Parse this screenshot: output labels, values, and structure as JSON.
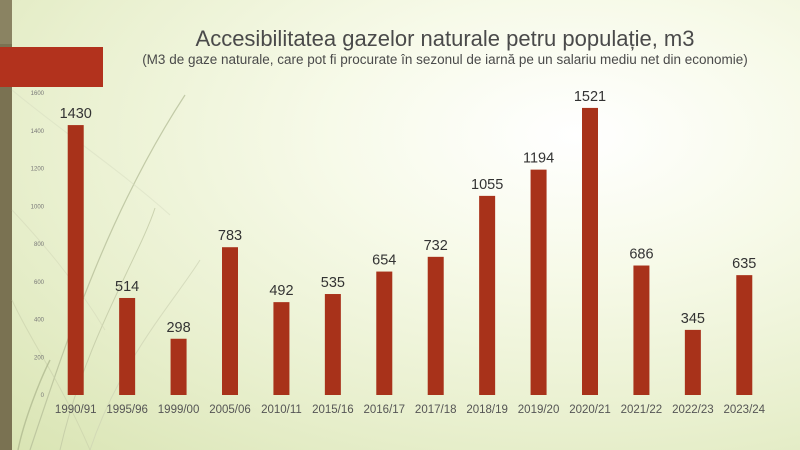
{
  "chart_data": {
    "type": "bar",
    "title": "Accesibilitatea gazelor naturale petru populație, m3",
    "subtitle": "(M3 de gaze naturale, care pot fi procurate în sezonul de iarnă pe un salariu mediu net din economie)",
    "categories": [
      "1990/91",
      "1995/96",
      "1999/00",
      "2005/06",
      "2010/11",
      "2015/16",
      "2016/17",
      "2017/18",
      "2018/19",
      "2019/20",
      "2020/21",
      "2021/22",
      "2022/23",
      "2023/24"
    ],
    "values": [
      1430,
      514,
      298,
      783,
      492,
      535,
      654,
      732,
      1055,
      1194,
      1521,
      686,
      345,
      635
    ],
    "data_labels": [
      "1430",
      "514",
      "298",
      "783",
      "492",
      "535",
      "654",
      "732",
      "1055",
      "1194",
      "1521",
      "686",
      "345",
      "635"
    ],
    "yticks": [
      "0",
      "200",
      "400",
      "600",
      "800",
      "1000",
      "1200",
      "1400",
      "1600"
    ],
    "ylim": [
      0,
      1600
    ],
    "xlabel": "",
    "ylabel": "",
    "grid": false,
    "legend": false
  },
  "colors": {
    "bar": "#a8321a",
    "accent_tab": "#b2321d",
    "side_strip": "#7a7252"
  }
}
